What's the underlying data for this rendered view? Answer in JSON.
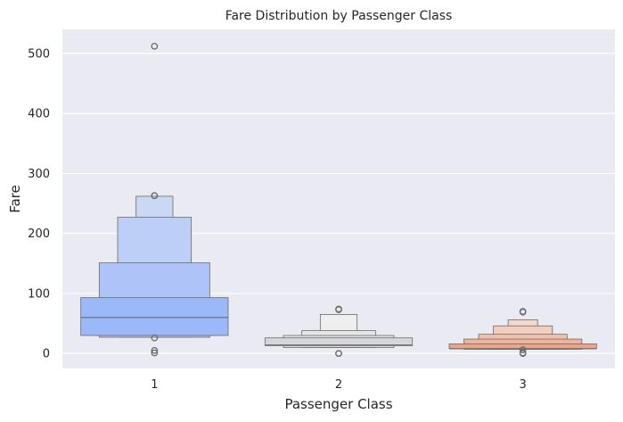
{
  "chart_data": {
    "type": "boxen",
    "title": "Fare Distribution by Passenger Class",
    "xlabel": "Passenger Class",
    "ylabel": "Fare",
    "categories": [
      "1",
      "2",
      "3"
    ],
    "ylim": [
      -25,
      540
    ],
    "yticks": [
      0,
      100,
      200,
      300,
      400,
      500
    ],
    "grid": true,
    "background": "#eaeaf2",
    "grid_color": "#ffffff",
    "edge_color": "#6b6b6b",
    "groups": [
      {
        "category": "1",
        "median": 60,
        "boxes": [
          {
            "low": 30,
            "high": 93,
            "color": "#9bb8f9"
          },
          {
            "low": 27,
            "high": 151,
            "color": "#aec4f8"
          },
          {
            "low": 27,
            "high": 227,
            "color": "#bdcff6"
          },
          {
            "low": 27,
            "high": 262,
            "color": "#cbd8f3"
          }
        ],
        "outliers": [
          512,
          263,
          263,
          26,
          5,
          1
        ]
      },
      {
        "category": "2",
        "median": 14,
        "boxes": [
          {
            "low": 13,
            "high": 26,
            "color": "#d6d7db"
          },
          {
            "low": 10,
            "high": 30,
            "color": "#dfe0e3"
          },
          {
            "low": 10,
            "high": 38,
            "color": "#e6e6e8"
          },
          {
            "low": 10,
            "high": 65,
            "color": "#eeeeef"
          }
        ],
        "outliers": [
          73,
          74,
          0,
          0
        ]
      },
      {
        "category": "3",
        "median": 8,
        "boxes": [
          {
            "low": 8,
            "high": 16,
            "color": "#eca58b"
          },
          {
            "low": 7,
            "high": 24,
            "color": "#efb49d"
          },
          {
            "low": 7,
            "high": 32,
            "color": "#f1c1ae"
          },
          {
            "low": 7,
            "high": 46,
            "color": "#f3cdbe"
          },
          {
            "low": 7,
            "high": 56,
            "color": "#f5d8cd"
          }
        ],
        "outliers": [
          69,
          70,
          6,
          1,
          0
        ]
      }
    ]
  }
}
